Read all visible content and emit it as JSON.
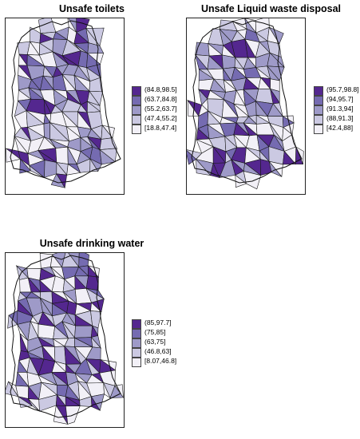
{
  "palette": [
    "#f2f0f7",
    "#cbc9e2",
    "#9e9ac8",
    "#756bb1",
    "#54278f"
  ],
  "panels": [
    {
      "title": "Unsafe toilets",
      "legend": [
        "(84.8,98.5]",
        "(63.7,84.8]",
        "(55.2,63.7]",
        "(47.4,55.2]",
        "[18.8,47.4]"
      ]
    },
    {
      "title": "Unsafe Liquid waste disposal",
      "legend": [
        "(95.7,98.8]",
        "(94,95.7]",
        "(91.3,94]",
        "(88,91.3]",
        "[42.4,88]"
      ]
    },
    {
      "title": "Unsafe drinking water",
      "legend": [
        "(85,97.7]",
        "(75,85]",
        "(63,75]",
        "(46.8,63]",
        "[8.07,46.8]"
      ]
    }
  ]
}
